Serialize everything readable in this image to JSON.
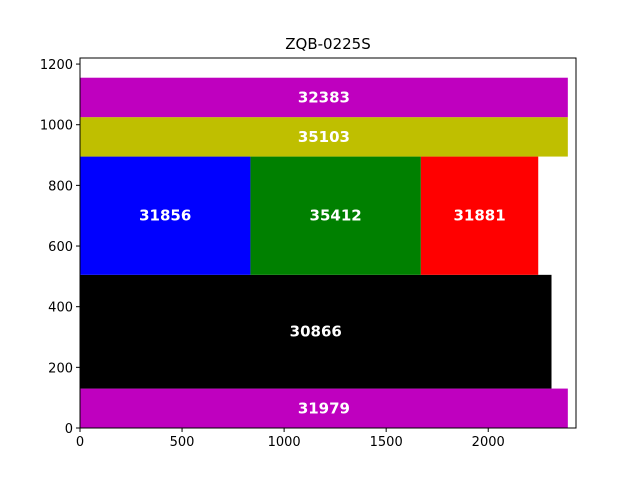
{
  "chart_data": {
    "type": "treemap",
    "title": "ZQB-0225S",
    "xlim": [
      0,
      2430
    ],
    "ylim": [
      0,
      1220
    ],
    "x_ticks": [
      0,
      500,
      1000,
      1500,
      2000
    ],
    "y_ticks": [
      0,
      200,
      400,
      600,
      800,
      1000,
      1200
    ],
    "grid": false,
    "rects": [
      {
        "label": "31979",
        "x0": 0,
        "x1": 2390,
        "y0": 0,
        "y1": 130,
        "color": "#bf00bf"
      },
      {
        "label": "30866",
        "x0": 0,
        "x1": 2310,
        "y0": 130,
        "y1": 505,
        "color": "#000000"
      },
      {
        "label": "31856",
        "x0": 0,
        "x1": 835,
        "y0": 505,
        "y1": 895,
        "color": "#0000ff"
      },
      {
        "label": "35412",
        "x0": 835,
        "x1": 1670,
        "y0": 505,
        "y1": 895,
        "color": "#008000"
      },
      {
        "label": "31881",
        "x0": 1670,
        "x1": 2245,
        "y0": 505,
        "y1": 895,
        "color": "#ff0000"
      },
      {
        "label": "35103",
        "x0": 0,
        "x1": 2390,
        "y0": 895,
        "y1": 1025,
        "color": "#bfbf00"
      },
      {
        "label": "32383",
        "x0": 0,
        "x1": 2390,
        "y0": 1025,
        "y1": 1155,
        "color": "#bf00bf"
      }
    ]
  }
}
